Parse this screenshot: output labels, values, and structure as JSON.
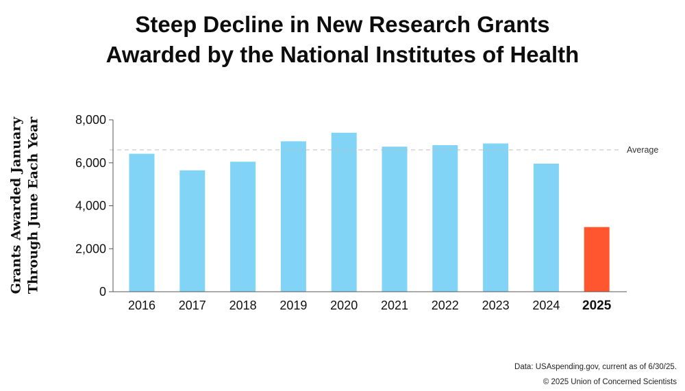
{
  "title": {
    "line1": "Steep Decline in New Research Grants",
    "line2": "Awarded by the National Institutes of Health"
  },
  "chart_data": {
    "type": "bar",
    "categories": [
      "2016",
      "2017",
      "2018",
      "2019",
      "2020",
      "2021",
      "2022",
      "2023",
      "2024",
      "2025"
    ],
    "values": [
      6420,
      5650,
      6050,
      7000,
      7400,
      6750,
      6820,
      6900,
      5960,
      3010
    ],
    "highlight": "2025",
    "ylabel": [
      "Grants Awarded January",
      "Through June Each Year"
    ],
    "ylim": [
      0,
      8000
    ],
    "yticks": [
      {
        "value": 0,
        "label": "0"
      },
      {
        "value": 2000,
        "label": "2,000"
      },
      {
        "value": 4000,
        "label": "4,000"
      },
      {
        "value": 6000,
        "label": "6,000"
      },
      {
        "value": 8000,
        "label": "8,000"
      }
    ],
    "reference_line": {
      "label": "Average",
      "value": 6600
    },
    "grid": false,
    "colors": {
      "bar": "#81d4f5",
      "highlight": "#ff5630",
      "reference": "#bfbfbf",
      "axis": "#555555"
    }
  },
  "footer": {
    "source": "Data: USAspending.gov, current as of 6/30/25.",
    "copyright": "© 2025 Union of Concerned Scientists"
  }
}
